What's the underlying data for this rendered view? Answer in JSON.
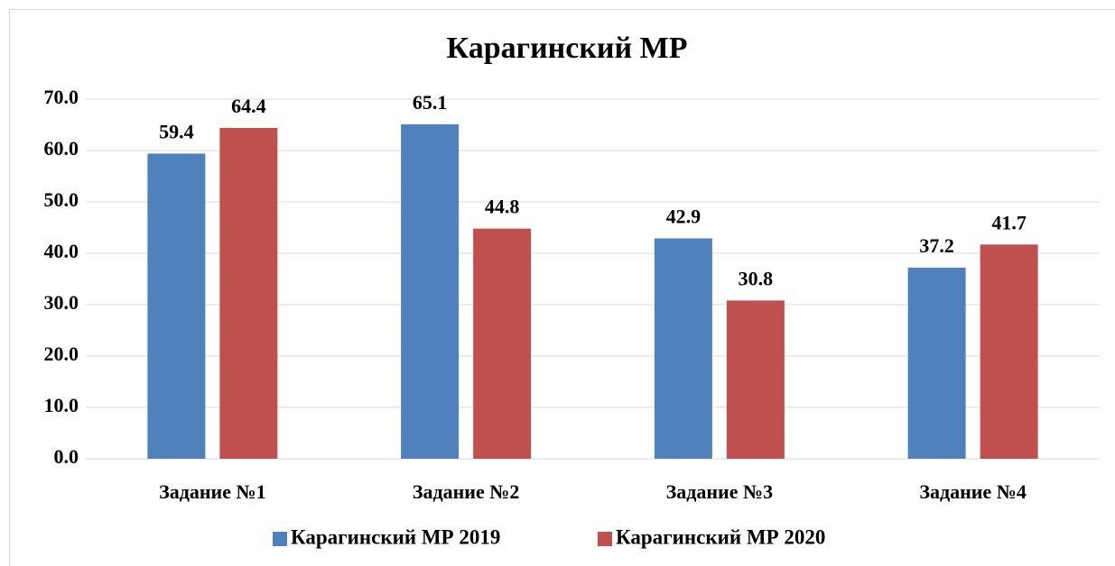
{
  "chart_data": {
    "type": "bar",
    "title": "Карагинский МР",
    "categories": [
      "Задание №1",
      "Задание №2",
      "Задание №3",
      "Задание №4"
    ],
    "series": [
      {
        "name": "Карагинский МР 2019",
        "color": "#4f81bd",
        "values": [
          59.4,
          65.1,
          42.9,
          37.2
        ]
      },
      {
        "name": "Карагинский МР 2020",
        "color": "#c0504d",
        "values": [
          64.4,
          44.8,
          30.8,
          41.7
        ]
      }
    ],
    "ylim": [
      0,
      70
    ],
    "yticks": [
      {
        "value": 0,
        "label": "0.0"
      },
      {
        "value": 10,
        "label": "10.0"
      },
      {
        "value": 20,
        "label": "20.0"
      },
      {
        "value": 30,
        "label": "30.0"
      },
      {
        "value": 40,
        "label": "40.0"
      },
      {
        "value": 50,
        "label": "50.0"
      },
      {
        "value": 60,
        "label": "60.0"
      },
      {
        "value": 70,
        "label": "70.0"
      }
    ],
    "grid": true,
    "legend": "bottom"
  }
}
